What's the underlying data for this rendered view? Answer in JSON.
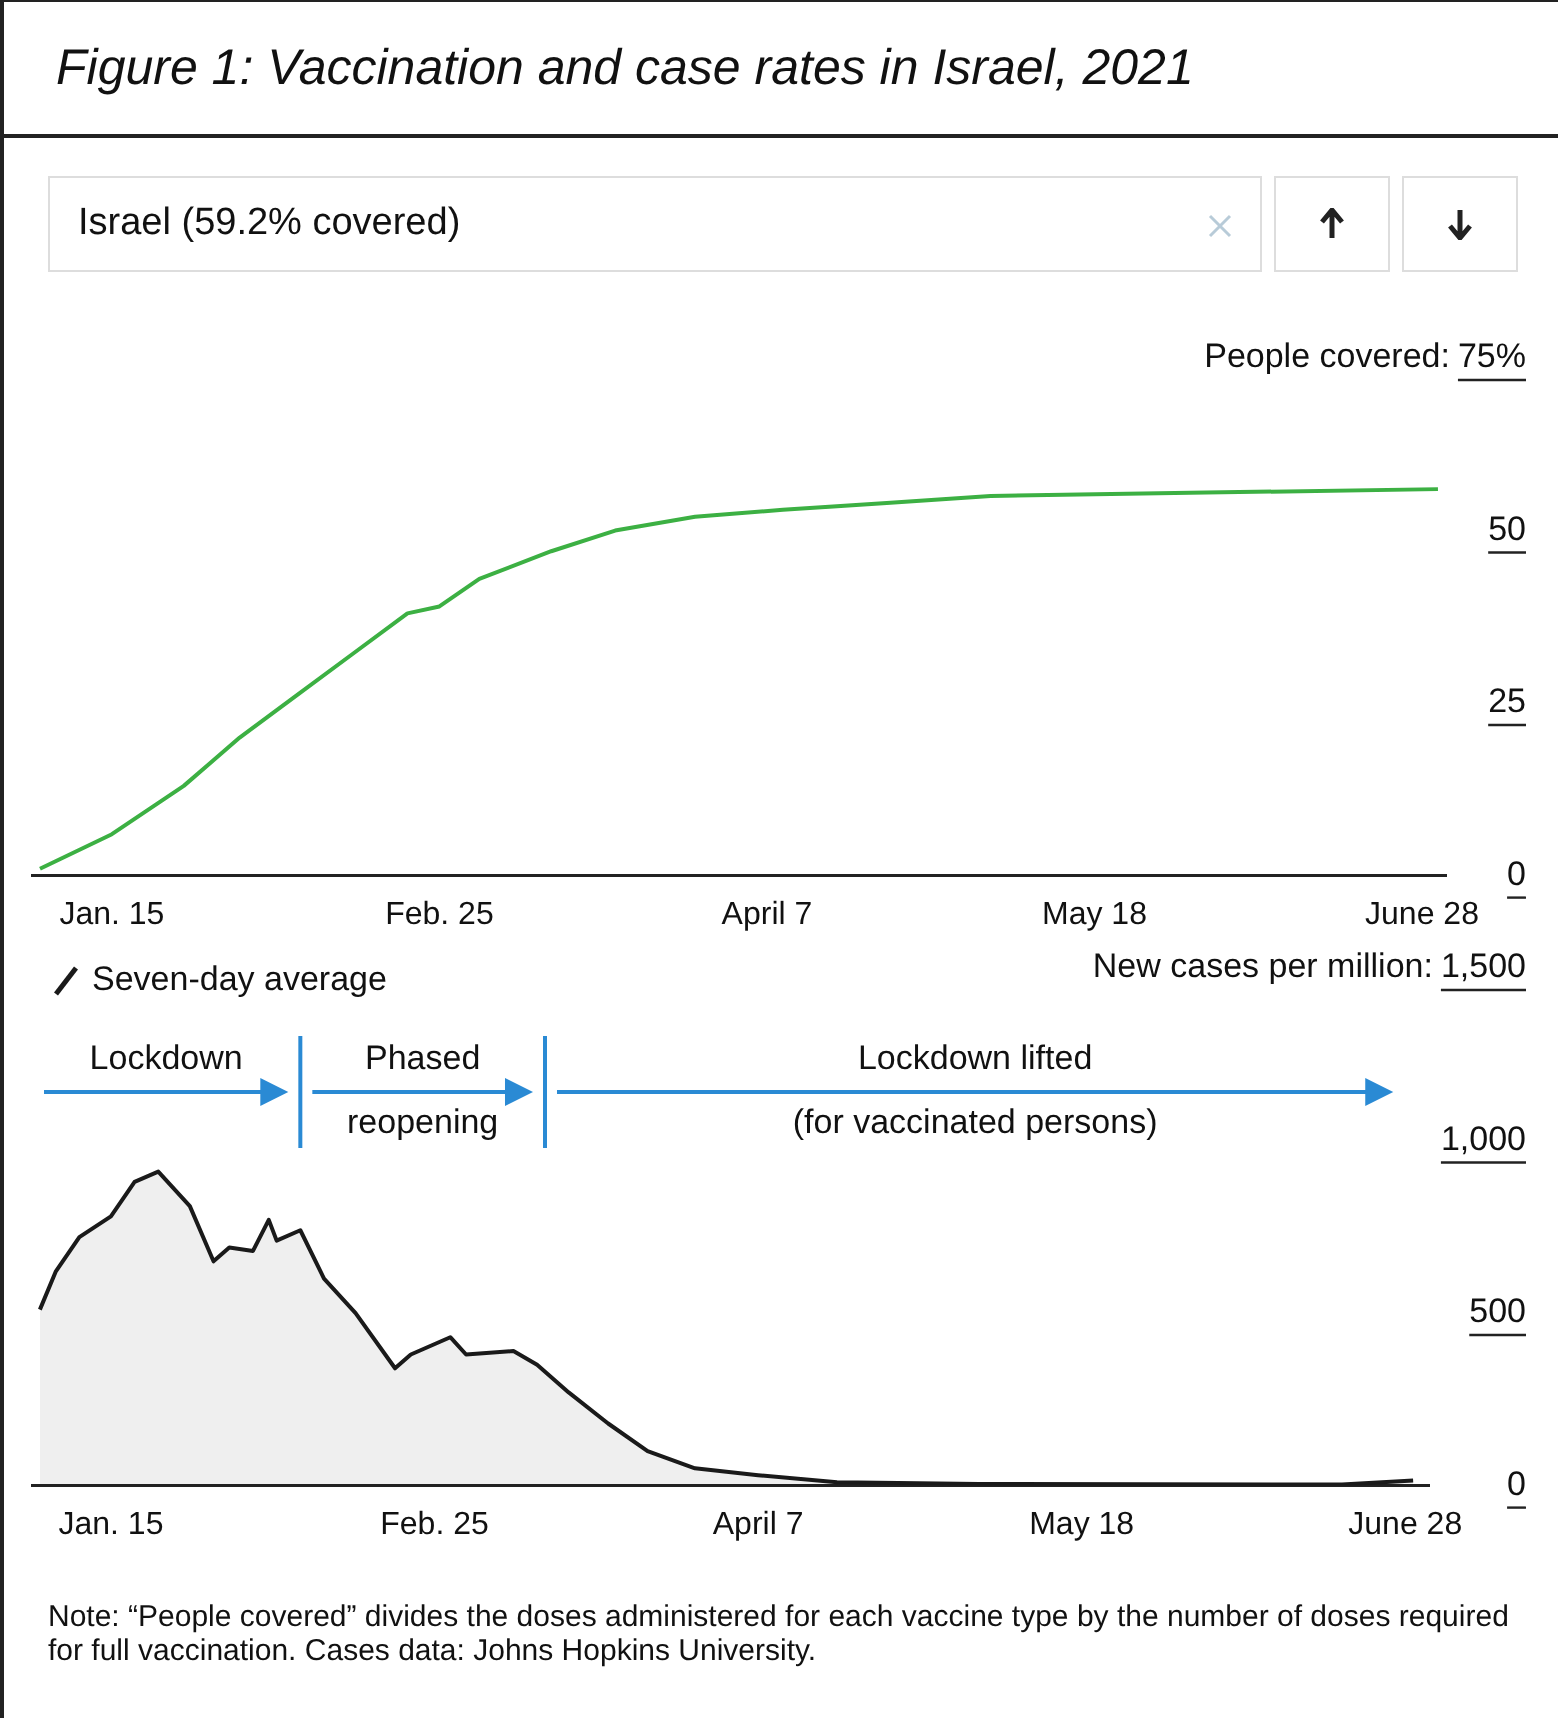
{
  "chart_data": [
    {
      "type": "line",
      "title": "Figure 1: Vaccination and case rates in Israel, 2021",
      "subtitle": "Israel (59.2% covered)",
      "ylabel": "People covered:",
      "marker": "none",
      "grid": false,
      "xlim": [
        "2021-01-05",
        "2021-07-01"
      ],
      "xticks": [
        {
          "value": "2021-01-15",
          "label": "Jan. 15"
        },
        {
          "value": "2021-02-25",
          "label": "Feb. 25"
        },
        {
          "value": "2021-04-07",
          "label": "April 7"
        },
        {
          "value": "2021-05-18",
          "label": "May 18"
        },
        {
          "value": "2021-06-28",
          "label": "June 28"
        }
      ],
      "ylim": [
        0,
        75
      ],
      "yticks": [
        0,
        25,
        50,
        {
          "value": 75,
          "label": "75%"
        }
      ],
      "series": [
        {
          "color": "#3cb043",
          "x": [
            "2021-01-06",
            "2021-01-15",
            "2021-01-24",
            "2021-01-31",
            "2021-02-07",
            "2021-02-14",
            "2021-02-21",
            "2021-02-25",
            "2021-03-02",
            "2021-03-11",
            "2021-03-19",
            "2021-03-29",
            "2021-04-09",
            "2021-04-22",
            "2021-05-05",
            "2021-06-01",
            "2021-06-30"
          ],
          "values": [
            1,
            6,
            13,
            20,
            26,
            32,
            38,
            39,
            43,
            47,
            50,
            52,
            53,
            54,
            55,
            55.5,
            56
          ]
        }
      ]
    },
    {
      "type": "area",
      "ylabel": "New cases per million:",
      "marker": "none",
      "grid": false,
      "legend": "top left",
      "xlim": [
        "2021-01-05",
        "2021-07-01"
      ],
      "xticks": [
        {
          "value": "2021-01-15",
          "label": "Jan. 15"
        },
        {
          "value": "2021-02-25",
          "label": "Feb. 25"
        },
        {
          "value": "2021-04-07",
          "label": "April 7"
        },
        {
          "value": "2021-05-18",
          "label": "May 18"
        },
        {
          "value": "2021-06-28",
          "label": "June 28"
        }
      ],
      "ylim": [
        0,
        1500
      ],
      "yticks": [
        0,
        500,
        {
          "value": 1000,
          "label": "1,000"
        },
        {
          "value": 1500,
          "label": "1,500"
        }
      ],
      "series": [
        {
          "name": "Seven-day average",
          "color": "#1a1a1a",
          "x": [
            "2021-01-06",
            "2021-01-08",
            "2021-01-11",
            "2021-01-15",
            "2021-01-18",
            "2021-01-21",
            "2021-01-25",
            "2021-01-28",
            "2021-01-30",
            "2021-02-02",
            "2021-02-04",
            "2021-02-05",
            "2021-02-08",
            "2021-02-11",
            "2021-02-15",
            "2021-02-20",
            "2021-02-22",
            "2021-02-27",
            "2021-03-01",
            "2021-03-07",
            "2021-03-10",
            "2021-03-14",
            "2021-03-19",
            "2021-03-24",
            "2021-03-30",
            "2021-04-07",
            "2021-04-17",
            "2021-05-05",
            "2021-06-20",
            "2021-06-29"
          ],
          "values": [
            510,
            620,
            720,
            780,
            880,
            910,
            810,
            650,
            690,
            680,
            770,
            710,
            740,
            600,
            500,
            340,
            380,
            430,
            380,
            390,
            350,
            270,
            180,
            100,
            50,
            30,
            10,
            5,
            3,
            15
          ]
        }
      ],
      "ref_lines": [
        {
          "axis": "x",
          "value": "2021-02-08",
          "color": "#2a8ad4"
        },
        {
          "axis": "x",
          "value": "2021-03-11",
          "color": "#2a8ad4"
        }
      ],
      "annotations": [
        "Lockdown",
        "Phased\nreopening",
        "Lockdown lifted\n(for vaccinated persons)",
        "Note: “People covered” divides the doses administered for each vaccine type by the number of doses required for full vaccination. Cases data: Johns Hopkins University."
      ]
    }
  ]
}
